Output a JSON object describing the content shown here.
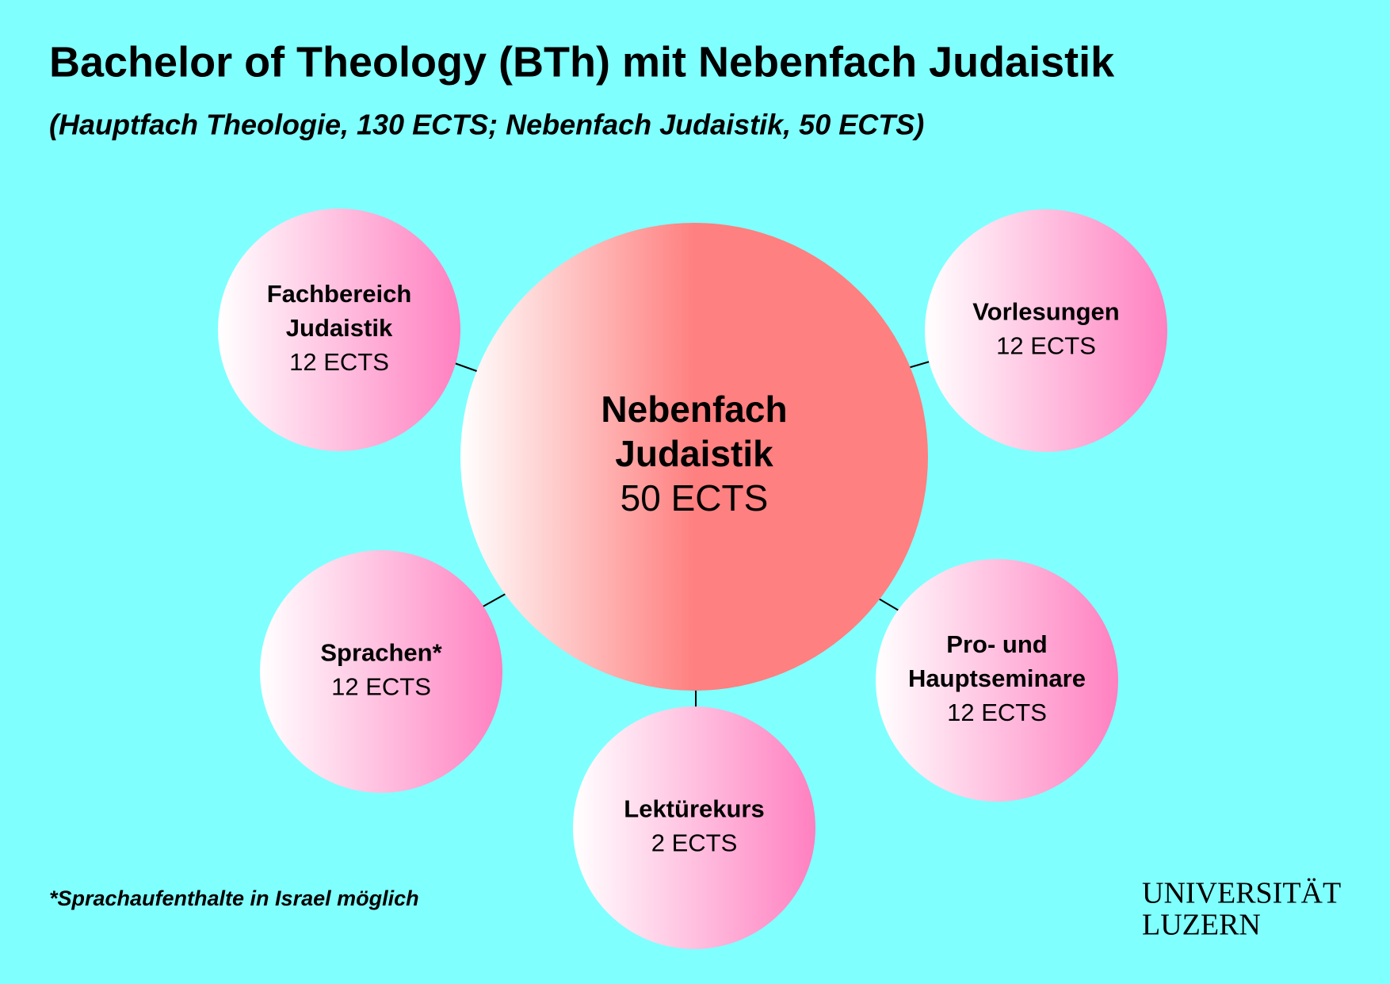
{
  "header": {
    "title": "Bachelor of Theology (BTh) mit Nebenfach Judaistik",
    "subtitle": "(Hauptfach Theologie, 130 ECTS; Nebenfach Judaistik, 50 ECTS)"
  },
  "center": {
    "label": [
      "Nebenfach",
      "Judaistik"
    ],
    "ects": "50 ECTS"
  },
  "nodes": [
    {
      "label": [
        "Fachbereich",
        "Judaistik"
      ],
      "ects": "12 ECTS"
    },
    {
      "label": [
        "Vorlesungen"
      ],
      "ects": "12 ECTS"
    },
    {
      "label": [
        "Sprachen*"
      ],
      "ects": "12 ECTS"
    },
    {
      "label": [
        "Lektürekurs"
      ],
      "ects": "2 ECTS"
    },
    {
      "label": [
        "Pro- und",
        "Hauptseminare"
      ],
      "ects": "12 ECTS"
    }
  ],
  "footnote": "*Sprachaufenthalte in Israel möglich",
  "logo": [
    "UNIVERSITÄT",
    "LUZERN"
  ]
}
